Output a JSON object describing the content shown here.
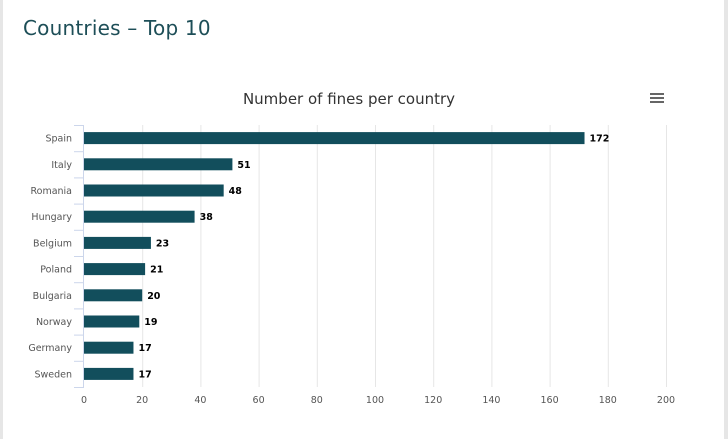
{
  "page": {
    "heading": "Countries – Top 10",
    "heading_color": "#1d4e57"
  },
  "chart_data": {
    "type": "bar",
    "orientation": "horizontal",
    "title": "Number of fines per country",
    "xlabel": "",
    "ylabel": "",
    "categories": [
      "Spain",
      "Italy",
      "Romania",
      "Hungary",
      "Belgium",
      "Poland",
      "Bulgaria",
      "Norway",
      "Germany",
      "Sweden"
    ],
    "values": [
      172,
      51,
      48,
      38,
      23,
      21,
      20,
      19,
      17,
      17
    ],
    "xlim": [
      0,
      200
    ],
    "x_ticks": [
      0,
      20,
      40,
      60,
      80,
      100,
      120,
      140,
      160,
      180,
      200
    ],
    "grid": true,
    "legend": "none",
    "data_labels": true,
    "bar_color": "#124e5c",
    "menu_icon": "hamburger-menu-icon"
  }
}
